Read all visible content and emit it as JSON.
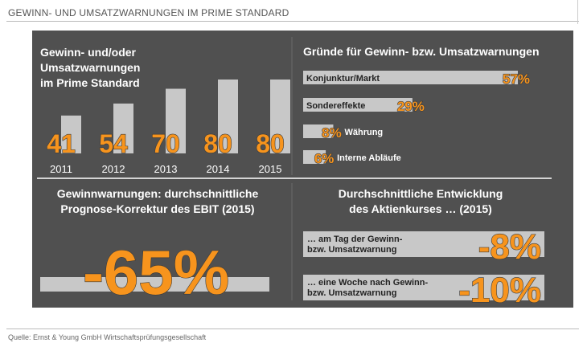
{
  "header": {
    "title": "GEWINN- UND UMSATZWARNUNGEN IM PRIME STANDARD"
  },
  "footer": {
    "source": "Quelle: Ernst & Young GmbH Wirtschaftsprüfungsgesellschaft"
  },
  "chart_data": [
    {
      "type": "bar",
      "title_lines": [
        "Gewinn- und/oder",
        "Umsatzwarnungen",
        "im Prime Standard"
      ],
      "categories": [
        "2011",
        "2012",
        "2013",
        "2014",
        "2015"
      ],
      "values": [
        41,
        54,
        70,
        80,
        80
      ],
      "value_labels": [
        "41",
        "54",
        "70",
        "80",
        "80"
      ],
      "ylim": [
        0,
        80
      ]
    },
    {
      "type": "bar",
      "orientation": "horizontal",
      "title": "Gründe für Gewinn- bzw. Umsatzwarnungen",
      "categories": [
        "Konjunktur/Markt",
        "Sondereffekte",
        "Währung",
        "Interne Abläufe"
      ],
      "values": [
        57,
        29,
        8,
        6
      ],
      "value_labels": [
        "57%",
        "29%",
        "8%",
        "6%"
      ],
      "xlim": [
        0,
        57
      ]
    },
    {
      "type": "bar",
      "title_lines": [
        "Gewinnwarnungen: durchschnittliche",
        "Prognose-Korrektur des EBIT (2015)"
      ],
      "values": [
        -65
      ],
      "value_labels": [
        "-65%"
      ]
    },
    {
      "type": "bar",
      "orientation": "horizontal",
      "title_lines": [
        "Durchschnittliche Entwicklung",
        "des Aktienkurses … (2015)"
      ],
      "items": [
        {
          "label_lines": [
            "… am Tag der Gewinn-",
            "bzw. Umsatzwarnung"
          ],
          "value": -8,
          "value_label": "-8%"
        },
        {
          "label_lines": [
            "… eine Woche nach Gewinn-",
            "bzw. Umsatzwarnung"
          ],
          "value": -10,
          "value_label": "-10%"
        }
      ]
    }
  ],
  "colors": {
    "panel": "#505050",
    "bar": "#c8c8c8",
    "accent": "#f7941d",
    "text": "#ffffff",
    "divider": "#ffffff"
  }
}
